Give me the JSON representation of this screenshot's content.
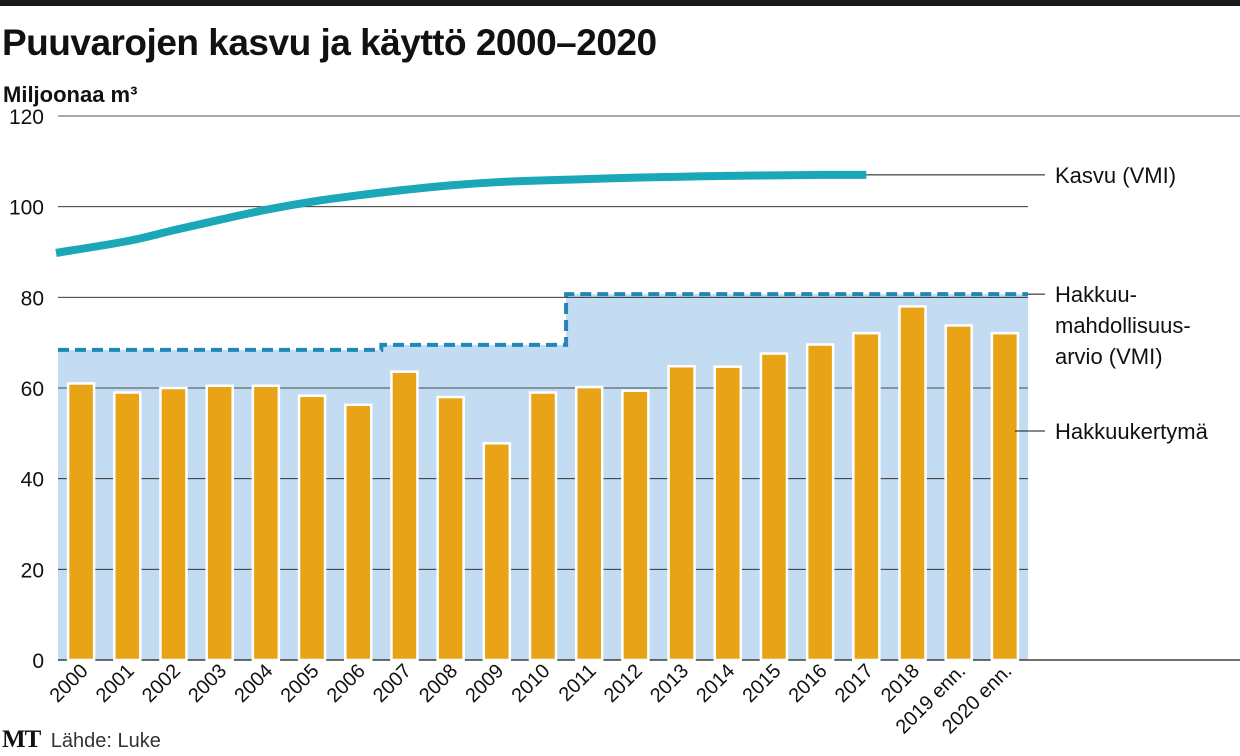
{
  "title": "Puuvarojen kasvu ja käyttö 2000–2020",
  "unit_label": "Miljoonaa m³",
  "footer": {
    "logo": "MT",
    "source": "Lähde: Luke"
  },
  "colors": {
    "bars": "#e8a317",
    "area": "#c4dcf1",
    "line": "#1aa7b8",
    "dashed": "#2286b8",
    "grid": "#1a1a1a"
  },
  "chart_data": {
    "type": "bar",
    "title": "Puuvarojen kasvu ja käyttö 2000–2020",
    "ylabel": "Miljoonaa m³",
    "ylim": [
      0,
      120
    ],
    "yticks": [
      0,
      20,
      40,
      60,
      80,
      100,
      120
    ],
    "grid": true,
    "categories": [
      "2000",
      "2001",
      "2002",
      "2003",
      "2004",
      "2005",
      "2006",
      "2007",
      "2008",
      "2009",
      "2010",
      "2011",
      "2012",
      "2013",
      "2014",
      "2015",
      "2016",
      "2017",
      "2018",
      "2019 enn.",
      "2020 enn."
    ],
    "series": [
      {
        "name": "Hakkuukertymä",
        "type": "bar",
        "values": [
          61.0,
          59.0,
          60.0,
          60.5,
          60.5,
          58.3,
          56.3,
          63.6,
          58.0,
          47.8,
          59.0,
          60.2,
          59.4,
          64.8,
          64.7,
          67.6,
          69.6,
          72.1,
          78.0,
          73.8,
          72.1
        ]
      },
      {
        "name": "Hakkuumahdollisuusarvio (VMI)",
        "label_lines": [
          "Hakkuu-",
          "mahdollisuus-",
          "arvio (VMI)"
        ],
        "type": "step",
        "style": "dashed",
        "steps": [
          {
            "from": "2000",
            "to": "2006",
            "value": 68.4
          },
          {
            "from": "2007",
            "to": "2010",
            "value": 69.5
          },
          {
            "from": "2011",
            "to": "2020 enn.",
            "value": 80.7
          }
        ]
      },
      {
        "name": "Kasvu (VMI)",
        "type": "line",
        "x": [
          "2000",
          "2001",
          "2002",
          "2003",
          "2004",
          "2005",
          "2006",
          "2007",
          "2008",
          "2009",
          "2010",
          "2011",
          "2012",
          "2013",
          "2014",
          "2015",
          "2016",
          "2017"
        ],
        "values": [
          89.8,
          92.4,
          94.8,
          97.1,
          99.3,
          101.1,
          102.5,
          103.7,
          104.7,
          105.4,
          105.8,
          106.1,
          106.4,
          106.6,
          106.8,
          106.9,
          107.0,
          107.0
        ]
      }
    ]
  }
}
